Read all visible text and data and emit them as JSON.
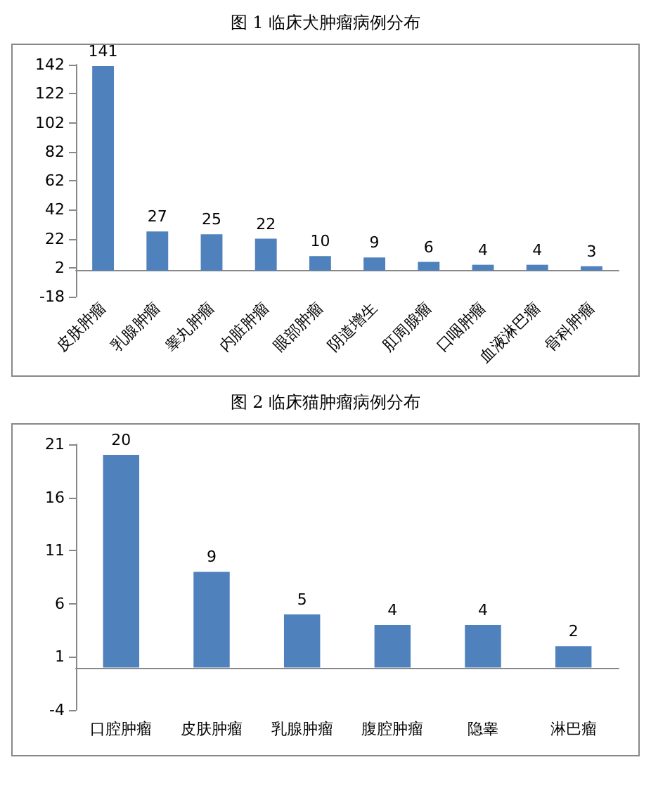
{
  "chart_data": [
    {
      "type": "bar",
      "title": "图 1 临床犬肿瘤病例分布",
      "categories": [
        "皮肤肿瘤",
        "乳腺肿瘤",
        "睾丸肿瘤",
        "内脏肿瘤",
        "眼部肿瘤",
        "阴道增生",
        "肛周腺瘤",
        "口咽肿瘤",
        "血液淋巴瘤",
        "骨科肿瘤"
      ],
      "values": [
        141,
        27,
        25,
        22,
        10,
        9,
        6,
        4,
        4,
        3
      ],
      "color": "#4f81bd",
      "ylim": [
        -18,
        142
      ],
      "yticks": [
        -18,
        2,
        22,
        42,
        62,
        82,
        102,
        122,
        142
      ],
      "data_labels": true
    },
    {
      "type": "bar",
      "title": "图 2 临床猫肿瘤病例分布",
      "categories": [
        "口腔肿瘤",
        "皮肤肿瘤",
        "乳腺肿瘤",
        "腹腔肿瘤",
        "隐睾",
        "淋巴瘤"
      ],
      "values": [
        20,
        9,
        5,
        4,
        4,
        2
      ],
      "color": "#4f81bd",
      "ylim": [
        -4,
        21
      ],
      "yticks": [
        -4,
        1,
        6,
        11,
        16,
        21
      ],
      "data_labels": true
    }
  ]
}
